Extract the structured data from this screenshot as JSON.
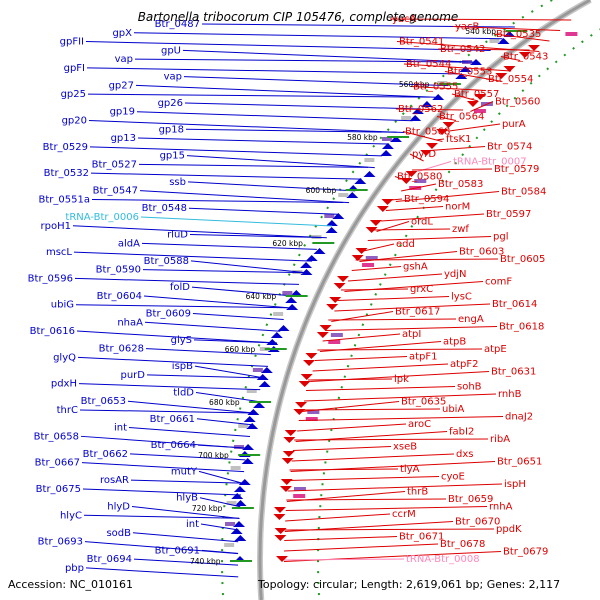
{
  "title": "Bartonella tribocorum CIP 105476, complete genome",
  "footer": {
    "accession": "Accession: NC_010161",
    "topology": "Topology: circular; Length: 2,619,061 bp; Genes: 2,117"
  },
  "colors": {
    "left_gene": "#0000cc",
    "right_gene": "#dd0000",
    "trna_left": "#33bbdd",
    "trna_right": "#ff88bb",
    "backbone": "#999999",
    "tick": "#229922"
  },
  "kbp_marks": [
    "540 kbp",
    "560 kbp",
    "580 kbp",
    "600 kbp",
    "620 kbp",
    "640 kbp",
    "660 kbp",
    "680 kbp",
    "700 kbp",
    "720 kbp",
    "740 kbp"
  ],
  "left_labels": [
    "Btr_0487",
    "gpX",
    "gpFII",
    "gpU",
    "vap",
    "gpFI",
    "vap",
    "gp27",
    "gp25",
    "gp26",
    "gp19",
    "gp20",
    "gp18",
    "gp13",
    "Btr_0529",
    "gp15",
    "Btr_0527",
    "Btr_0532",
    "ssb",
    "Btr_0547",
    "Btr_0551a",
    "Btr_0548",
    "tRNA-Btr_0006",
    "rpoH1",
    "rluD",
    "aldA",
    "mscL",
    "Btr_0588",
    "Btr_0590",
    "Btr_0596",
    "folD",
    "Btr_0604",
    "ubiG",
    "Btr_0609",
    "nhaA",
    "Btr_0616",
    "glyS",
    "Btr_0628",
    "glyQ",
    "ispB",
    "purD",
    "pdxH",
    "tldD",
    "Btr_0653",
    "thrC",
    "Btr_0661",
    "int",
    "Btr_0658",
    "Btr_0664",
    "Btr_0662",
    "Btr_0667",
    "mutY",
    "rosAR",
    "Btr_0675",
    "hlyB",
    "hlyD",
    "hlyC",
    "int",
    "sodB",
    "Btr_0693",
    "Btr_0691",
    "Btr_0694",
    "pbp"
  ],
  "right_labels": [
    "yacA",
    "yacB",
    "Btr_0535",
    "Btr_0541",
    "Btr_0542",
    "Btr_0543",
    "Btr_0544",
    "Btr_0553",
    "Btr_0554",
    "Btr_0555",
    "Btr_0557",
    "Btr_0560",
    "Btr_0562",
    "Btr_0564",
    "purA",
    "Btr_0568",
    "ftsK1",
    "Btr_0574",
    "pyrD",
    "tRNA-Btr_0007",
    "Btr_0579",
    "Btr_0580",
    "Btr_0583",
    "Btr_0584",
    "Btr_0594",
    "norM",
    "Btr_0597",
    "ordL",
    "zwf",
    "pgl",
    "edd",
    "Btr_0603",
    "Btr_0605",
    "gshA",
    "ydjN",
    "comF",
    "grxC",
    "lysC",
    "Btr_0614",
    "Btr_0617",
    "engA",
    "Btr_0618",
    "atpI",
    "atpB",
    "atpE",
    "atpF1",
    "atpF2",
    "Btr_0631",
    "lpk",
    "sohB",
    "rnhB",
    "Btr_0635",
    "ubiA",
    "dnaJ2",
    "aroC",
    "fabI2",
    "ribA",
    "xseB",
    "dxs",
    "Btr_0651",
    "tlyA",
    "cyoE",
    "ispH",
    "thrB",
    "Btr_0659",
    "rnhA",
    "ccrM",
    "Btr_0670",
    "ppdK",
    "Btr_0671",
    "Btr_0678",
    "Btr_0679",
    "tRNA-Btr_0008"
  ]
}
